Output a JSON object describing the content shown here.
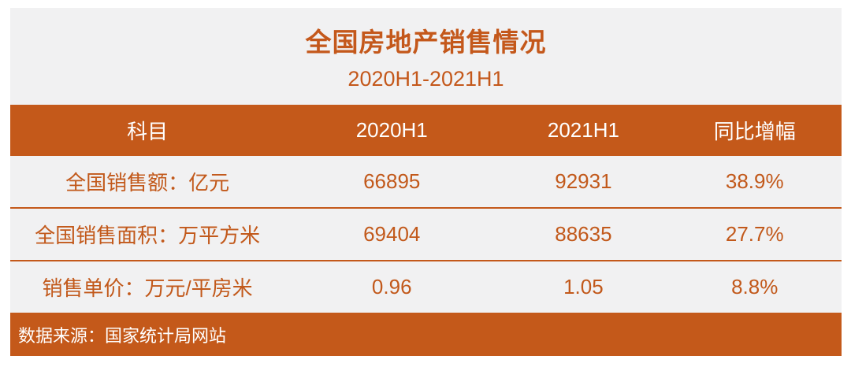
{
  "header": {
    "title": "全国房地产销售情况",
    "subtitle": "2020H1-2021H1"
  },
  "table": {
    "columns": [
      "科目",
      "2020H1",
      "2021H1",
      "同比增幅"
    ],
    "rows": [
      {
        "cells": [
          "全国销售额：亿元",
          "66895",
          "92931",
          "38.9%"
        ]
      },
      {
        "cells": [
          "全国销售面积：万平方米",
          "69404",
          "88635",
          "27.7%"
        ]
      },
      {
        "cells": [
          "销售单价：万元/平房米",
          "0.96",
          "1.05",
          "8.8%"
        ]
      }
    ]
  },
  "footer": {
    "source": "数据来源：国家统计局网站"
  },
  "colors": {
    "accent_orange": "#C4591A",
    "panel_background": "#F1F1F2",
    "data_text_orange": "#C2591B",
    "header_text": "#FFFFFF"
  },
  "chart_data": {
    "type": "table",
    "title": "全国房地产销售情况",
    "subtitle": "2020H1-2021H1",
    "columns": [
      "科目",
      "2020H1",
      "2021H1",
      "同比增幅"
    ],
    "rows": [
      [
        "全国销售额：亿元",
        66895,
        92931,
        "38.9%"
      ],
      [
        "全国销售面积：万平方米",
        69404,
        88635,
        "27.7%"
      ],
      [
        "销售单价：万元/平房米",
        0.96,
        1.05,
        "8.8%"
      ]
    ],
    "source_note": "数据来源：国家统计局网站"
  }
}
